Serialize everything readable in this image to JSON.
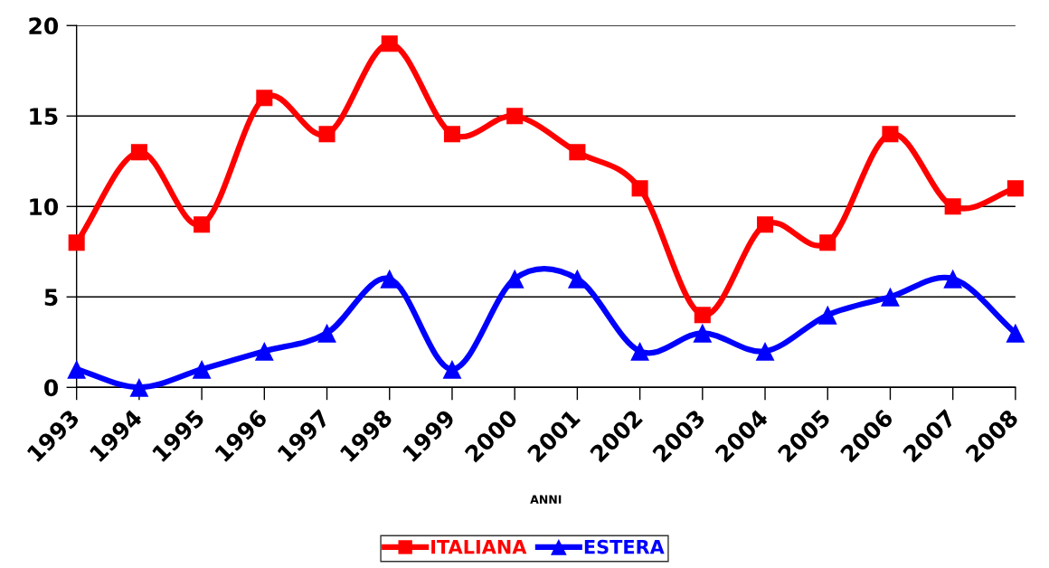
{
  "chart_data": {
    "type": "line",
    "xlabel": "ANNI",
    "categories": [
      "1993",
      "1994",
      "1995",
      "1996",
      "1997",
      "1998",
      "1999",
      "2000",
      "2001",
      "2002",
      "2003",
      "2004",
      "2005",
      "2006",
      "2007",
      "2008"
    ],
    "series": [
      {
        "name": "ITALIANA",
        "color": "#ff0000",
        "marker": "square",
        "values": [
          8,
          13,
          9,
          16,
          14,
          19,
          14,
          15,
          13,
          11,
          4,
          9,
          8,
          14,
          10,
          11
        ]
      },
      {
        "name": "ESTERA",
        "color": "#0000ff",
        "marker": "triangle",
        "values": [
          1,
          0,
          1,
          2,
          3,
          6,
          1,
          6,
          6,
          2,
          3,
          2,
          4,
          5,
          6,
          3
        ]
      }
    ],
    "ylim": [
      0,
      20
    ],
    "yticks": [
      0,
      5,
      10,
      15,
      20
    ],
    "grid": "y",
    "legend": "bottom",
    "line_style": "solid"
  }
}
